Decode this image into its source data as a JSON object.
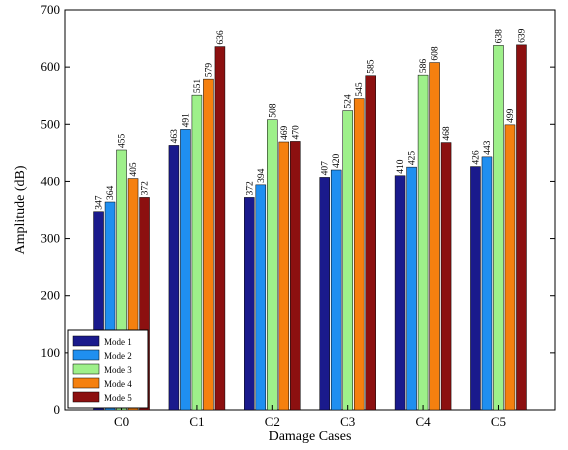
{
  "chart_data": {
    "type": "bar",
    "xlabel": "Damage Cases",
    "ylabel": "Amplitude (dB)",
    "ylim": [
      0,
      700
    ],
    "yticks": [
      0,
      100,
      200,
      300,
      400,
      500,
      600,
      700
    ],
    "categories": [
      "C0",
      "C1",
      "C2",
      "C3",
      "C4",
      "C5"
    ],
    "series": [
      {
        "name": "Mode 1",
        "color": "#1a1a8c",
        "values": [
          347,
          463,
          372,
          407,
          410,
          426
        ],
        "labels": [
          "347",
          "463",
          "372",
          "407",
          "410",
          "426"
        ]
      },
      {
        "name": "Mode 2",
        "color": "#1f8ff0",
        "values": [
          364,
          491,
          394,
          420,
          425,
          443
        ],
        "labels": [
          "364",
          "491",
          "394",
          "420",
          "425",
          "443"
        ]
      },
      {
        "name": "Mode 3",
        "color": "#9ef08a",
        "values": [
          455,
          551,
          508,
          524,
          586,
          638
        ],
        "labels": [
          "455",
          "551",
          "508",
          "524",
          "586",
          "638"
        ]
      },
      {
        "name": "Mode 4",
        "color": "#f5800f",
        "values": [
          405,
          579,
          469,
          545,
          608,
          499
        ],
        "labels": [
          "405",
          "579",
          "469",
          "545",
          "608",
          "499"
        ]
      },
      {
        "name": "Mode 5",
        "color": "#8c1010",
        "values": [
          372,
          636,
          470,
          585,
          468,
          639
        ],
        "labels": [
          "372",
          "636",
          "470",
          "585",
          "468",
          "639"
        ]
      }
    ],
    "legend": "bottom-left",
    "grid": false
  }
}
